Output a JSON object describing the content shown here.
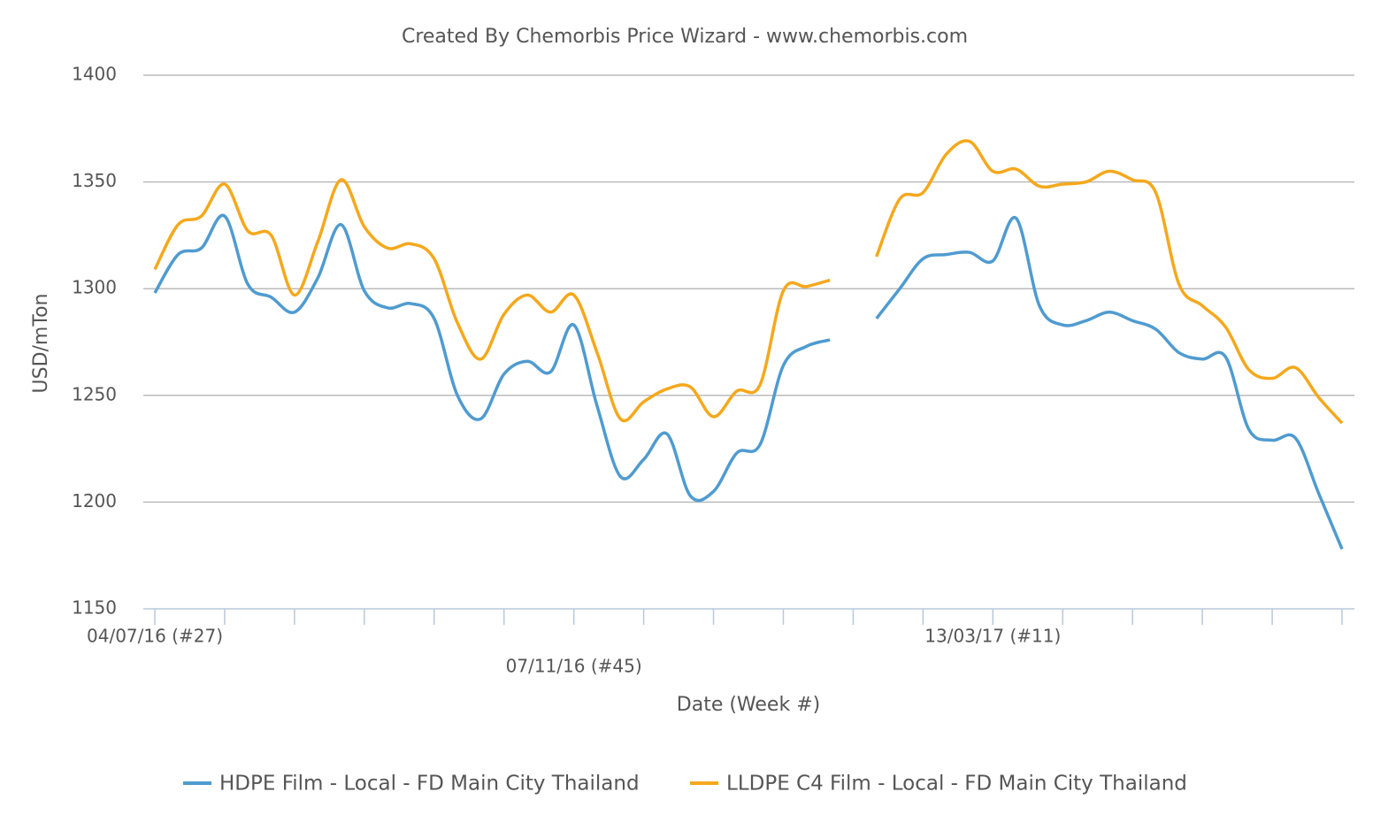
{
  "chart_data": {
    "type": "line",
    "title": "Created By Chemorbis Price Wizard - www.chemorbis.com",
    "x_label": "Date (Week #)",
    "y_label": "USD/mTon",
    "categories": [
      "04/07/16 (#27)",
      null,
      null,
      null,
      null,
      null,
      null,
      null,
      null,
      null,
      null,
      null,
      null,
      null,
      null,
      null,
      null,
      null,
      "07/11/16 (#45)",
      null,
      null,
      null,
      null,
      null,
      null,
      null,
      null,
      null,
      null,
      null,
      null,
      null,
      null,
      null,
      null,
      null,
      "13/03/17 (#11)",
      null,
      null,
      null,
      null,
      null,
      null,
      null,
      null,
      null,
      null,
      null,
      null,
      null,
      null,
      null
    ],
    "series": [
      {
        "name": "HDPE Film - Local - FD Main City Thailand",
        "color": "#4f9bd0",
        "values": [
          1298,
          1316,
          1319,
          1334,
          1302,
          1296,
          1289,
          1305,
          1330,
          1299,
          1291,
          1293,
          1286,
          1250,
          1239,
          1260,
          1266,
          1261,
          1283,
          1245,
          1212,
          1220,
          1232,
          1203,
          1205,
          1223,
          1227,
          1264,
          1273,
          1276,
          null,
          1286,
          1300,
          1314,
          1316,
          1317,
          1313,
          1333,
          1292,
          1283,
          1285,
          1289,
          1285,
          1281,
          1270,
          1267,
          1268,
          1234,
          1229,
          1230,
          1204,
          1178
        ]
      },
      {
        "name": "LLDPE C4 Film - Local - FD Main City Thailand",
        "color": "#f5a81c",
        "values": [
          1309,
          1330,
          1334,
          1349,
          1327,
          1325,
          1297,
          1322,
          1351,
          1329,
          1319,
          1321,
          1314,
          1284,
          1267,
          1288,
          1297,
          1289,
          1297,
          1270,
          1239,
          1247,
          1253,
          1254,
          1240,
          1252,
          1255,
          1299,
          1301,
          1304,
          null,
          1315,
          1342,
          1345,
          1363,
          1369,
          1355,
          1356,
          1348,
          1349,
          1350,
          1355,
          1351,
          1345,
          1302,
          1292,
          1282,
          1262,
          1258,
          1263,
          1249,
          1237
        ]
      }
    ],
    "ylim": [
      1150,
      1400
    ],
    "yticks": [
      1150,
      1200,
      1250,
      1300,
      1350,
      1400
    ],
    "grid": true,
    "legend": "bottom"
  }
}
